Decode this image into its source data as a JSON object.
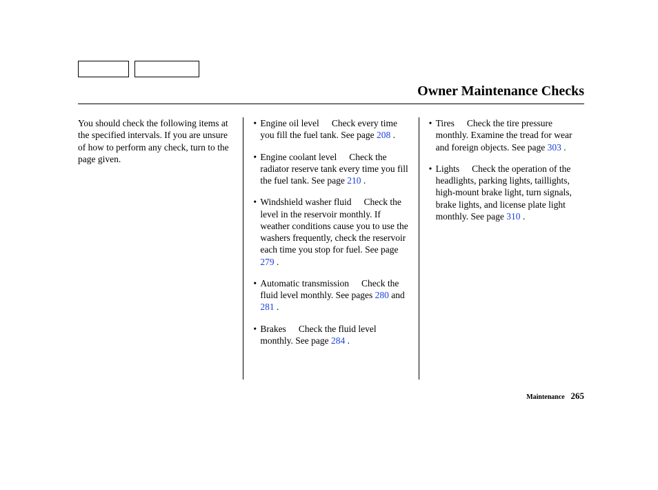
{
  "header": {
    "title": "Owner Maintenance Checks"
  },
  "intro": "You should check the following items at the specified intervals. If you are unsure of how to perform any check, turn to the page given.",
  "checks_col2": [
    {
      "label": "Engine oil level",
      "text_before": "Check every time you fill the fuel tank. See page ",
      "page": "208",
      "text_after": " ."
    },
    {
      "label": "Engine coolant level",
      "text_before": "Check the radiator reserve tank every time you fill the fuel tank. See page ",
      "page": "210",
      "text_after": " ."
    },
    {
      "label": "Windshield washer fluid",
      "text_before": "Check the level in the reservoir monthly. If weather conditions cause you to use the washers frequently, check the reservoir each time you stop for fuel. See page ",
      "page": "279",
      "text_after": " ."
    },
    {
      "label": "Automatic transmission",
      "text_before": "Check the fluid level monthly. See pages ",
      "page": "280",
      "mid": " and  ",
      "page2": "281",
      "text_after": " ."
    },
    {
      "label": "Brakes",
      "text_before": "Check the fluid level monthly. See page ",
      "page": "284",
      "text_after": " ."
    }
  ],
  "checks_col3": [
    {
      "label": "Tires",
      "text_before": "Check the tire pressure monthly. Examine the tread for wear and foreign objects. See page ",
      "page": "303",
      "text_after": " ."
    },
    {
      "label": "Lights",
      "text_before": "Check the operation of the headlights, parking lights, taillights, high-mount brake light, turn signals, brake lights, and license plate light monthly. See page ",
      "page": "310",
      "text_after": " ."
    }
  ],
  "footer": {
    "section": "Maintenance",
    "page_number": "265"
  },
  "colors": {
    "link": "#1a3fd6",
    "text": "#000000",
    "bg": "#ffffff"
  }
}
